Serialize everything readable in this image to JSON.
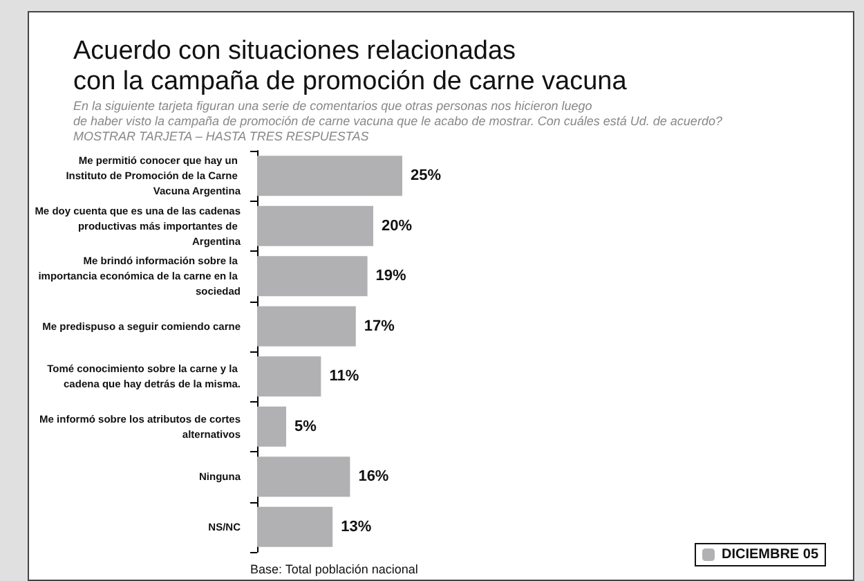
{
  "chart_data": {
    "type": "bar",
    "orientation": "horizontal",
    "title": "Acuerdo con situaciones relacionadas\ncon la campaña de promoción de carne vacuna",
    "subtitle": "En la siguiente tarjeta figuran una serie de comentarios que otras personas nos hicieron luego\nde haber visto la campaña de promoción de carne vacuna que le acabo de mostrar. Con cuáles está Ud. de acuerdo?\nMOSTRAR TARJETA – HASTA TRES RESPUESTAS",
    "categories": [
      "Me permitió conocer que hay un Instituto de Promoción de la Carne Vacuna Argentina",
      "Me doy cuenta que es una de las cadenas productivas más importantes de Argentina",
      "Me brindó información sobre la importancia económica de la carne en la sociedad",
      "Me predispuso a seguir comiendo carne",
      "Tomé conocimiento sobre la carne y la cadena que hay detrás de la misma.",
      "Me informó sobre los atributos de cortes alternativos",
      "Ninguna",
      "NS/NC"
    ],
    "series": [
      {
        "name": "DICIEMBRE 05",
        "color": "#b1b1b3",
        "values": [
          25,
          20,
          19,
          17,
          11,
          5,
          16,
          13
        ],
        "value_labels": [
          "25%",
          "20%",
          "19%",
          "17%",
          "11%",
          "5%",
          "16%",
          "13%"
        ]
      }
    ],
    "annotations": [
      "Base: Total población nacional"
    ],
    "legend": "bottom right",
    "tick_labels": "y"
  }
}
